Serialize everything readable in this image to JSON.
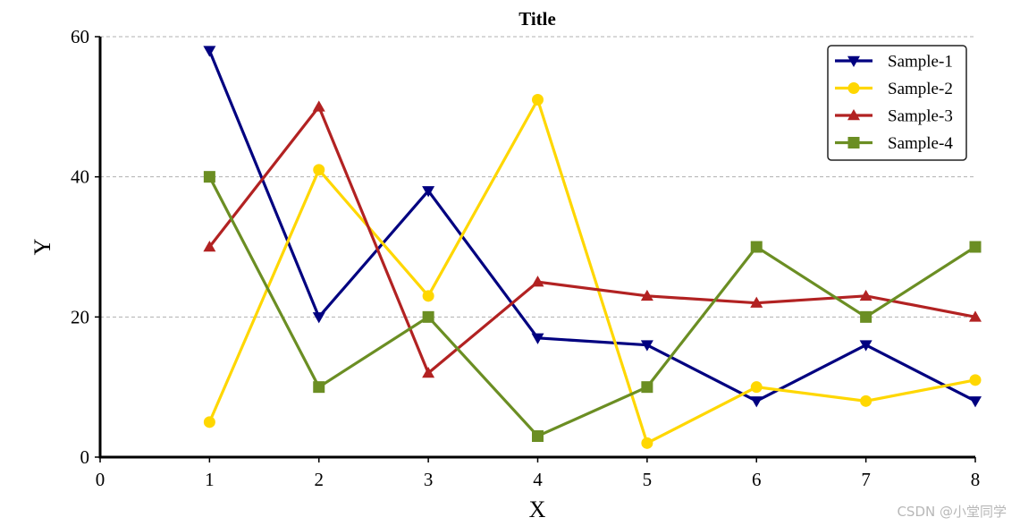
{
  "chart_data": {
    "type": "line",
    "title": "Title",
    "xlabel": "X",
    "ylabel": "Y",
    "xlim": [
      0,
      8
    ],
    "ylim": [
      0,
      60
    ],
    "x_ticks": [
      0,
      1,
      2,
      3,
      4,
      5,
      6,
      7,
      8
    ],
    "y_ticks": [
      0,
      20,
      40,
      60
    ],
    "grid": "horizontal dashed",
    "legend_position": "top-right",
    "x": [
      1,
      2,
      3,
      4,
      5,
      6,
      7,
      8
    ],
    "series": [
      {
        "name": "Sample-1",
        "color": "#000080",
        "marker": "triangle-down",
        "values": [
          58,
          20,
          38,
          17,
          16,
          8,
          16,
          8
        ]
      },
      {
        "name": "Sample-2",
        "color": "#FFD700",
        "marker": "circle",
        "values": [
          5,
          41,
          23,
          51,
          2,
          10,
          8,
          11
        ]
      },
      {
        "name": "Sample-3",
        "color": "#B22222",
        "marker": "triangle-up",
        "values": [
          30,
          50,
          12,
          25,
          23,
          22,
          23,
          20
        ]
      },
      {
        "name": "Sample-4",
        "color": "#6B8E23",
        "marker": "square",
        "values": [
          40,
          10,
          20,
          3,
          10,
          30,
          20,
          30
        ]
      }
    ]
  },
  "watermark": "CSDN @小堂同学"
}
